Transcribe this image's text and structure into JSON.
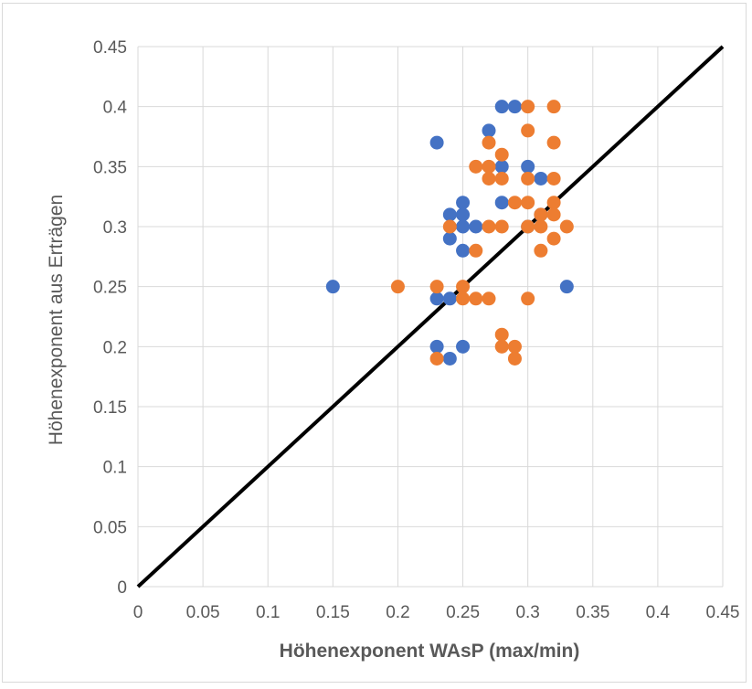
{
  "chart_data": {
    "type": "scatter",
    "title": "",
    "xlabel": "Höhenexponent WAsP (max/min)",
    "ylabel": "Höhenexponent aus Erträgen",
    "xlim": [
      0,
      0.45
    ],
    "ylim": [
      0,
      0.45
    ],
    "x_ticks": [
      "0",
      "0.05",
      "0.1",
      "0.15",
      "0.2",
      "0.25",
      "0.3",
      "0.35",
      "0.4",
      "0.45"
    ],
    "y_ticks": [
      "0",
      "0.05",
      "0.1",
      "0.15",
      "0.2",
      "0.25",
      "0.3",
      "0.35",
      "0.4",
      "0.45"
    ],
    "grid": true,
    "legend": "none",
    "reference_line": {
      "x": [
        0,
        0.45
      ],
      "y": [
        0,
        0.45
      ],
      "color": "#000000"
    },
    "series": [
      {
        "color": "#4472c4",
        "points": [
          [
            0.15,
            0.25
          ],
          [
            0.23,
            0.37
          ],
          [
            0.23,
            0.24
          ],
          [
            0.23,
            0.2
          ],
          [
            0.24,
            0.31
          ],
          [
            0.24,
            0.29
          ],
          [
            0.24,
            0.24
          ],
          [
            0.24,
            0.19
          ],
          [
            0.25,
            0.32
          ],
          [
            0.25,
            0.31
          ],
          [
            0.25,
            0.3
          ],
          [
            0.25,
            0.28
          ],
          [
            0.25,
            0.2
          ],
          [
            0.26,
            0.3
          ],
          [
            0.27,
            0.38
          ],
          [
            0.28,
            0.4
          ],
          [
            0.28,
            0.35
          ],
          [
            0.28,
            0.32
          ],
          [
            0.29,
            0.4
          ],
          [
            0.3,
            0.35
          ],
          [
            0.3,
            0.3
          ],
          [
            0.31,
            0.34
          ],
          [
            0.31,
            0.31
          ],
          [
            0.33,
            0.25
          ]
        ]
      },
      {
        "color": "#ed7d31",
        "points": [
          [
            0.2,
            0.25
          ],
          [
            0.23,
            0.25
          ],
          [
            0.23,
            0.19
          ],
          [
            0.24,
            0.3
          ],
          [
            0.25,
            0.25
          ],
          [
            0.25,
            0.24
          ],
          [
            0.26,
            0.35
          ],
          [
            0.26,
            0.28
          ],
          [
            0.26,
            0.24
          ],
          [
            0.27,
            0.37
          ],
          [
            0.27,
            0.35
          ],
          [
            0.27,
            0.34
          ],
          [
            0.27,
            0.3
          ],
          [
            0.27,
            0.24
          ],
          [
            0.28,
            0.36
          ],
          [
            0.28,
            0.34
          ],
          [
            0.28,
            0.3
          ],
          [
            0.28,
            0.21
          ],
          [
            0.28,
            0.2
          ],
          [
            0.29,
            0.32
          ],
          [
            0.29,
            0.2
          ],
          [
            0.29,
            0.19
          ],
          [
            0.3,
            0.4
          ],
          [
            0.3,
            0.38
          ],
          [
            0.3,
            0.34
          ],
          [
            0.3,
            0.32
          ],
          [
            0.3,
            0.3
          ],
          [
            0.3,
            0.24
          ],
          [
            0.31,
            0.31
          ],
          [
            0.31,
            0.3
          ],
          [
            0.31,
            0.28
          ],
          [
            0.32,
            0.4
          ],
          [
            0.32,
            0.37
          ],
          [
            0.32,
            0.34
          ],
          [
            0.32,
            0.32
          ],
          [
            0.32,
            0.31
          ],
          [
            0.32,
            0.29
          ],
          [
            0.33,
            0.3
          ]
        ]
      }
    ]
  }
}
